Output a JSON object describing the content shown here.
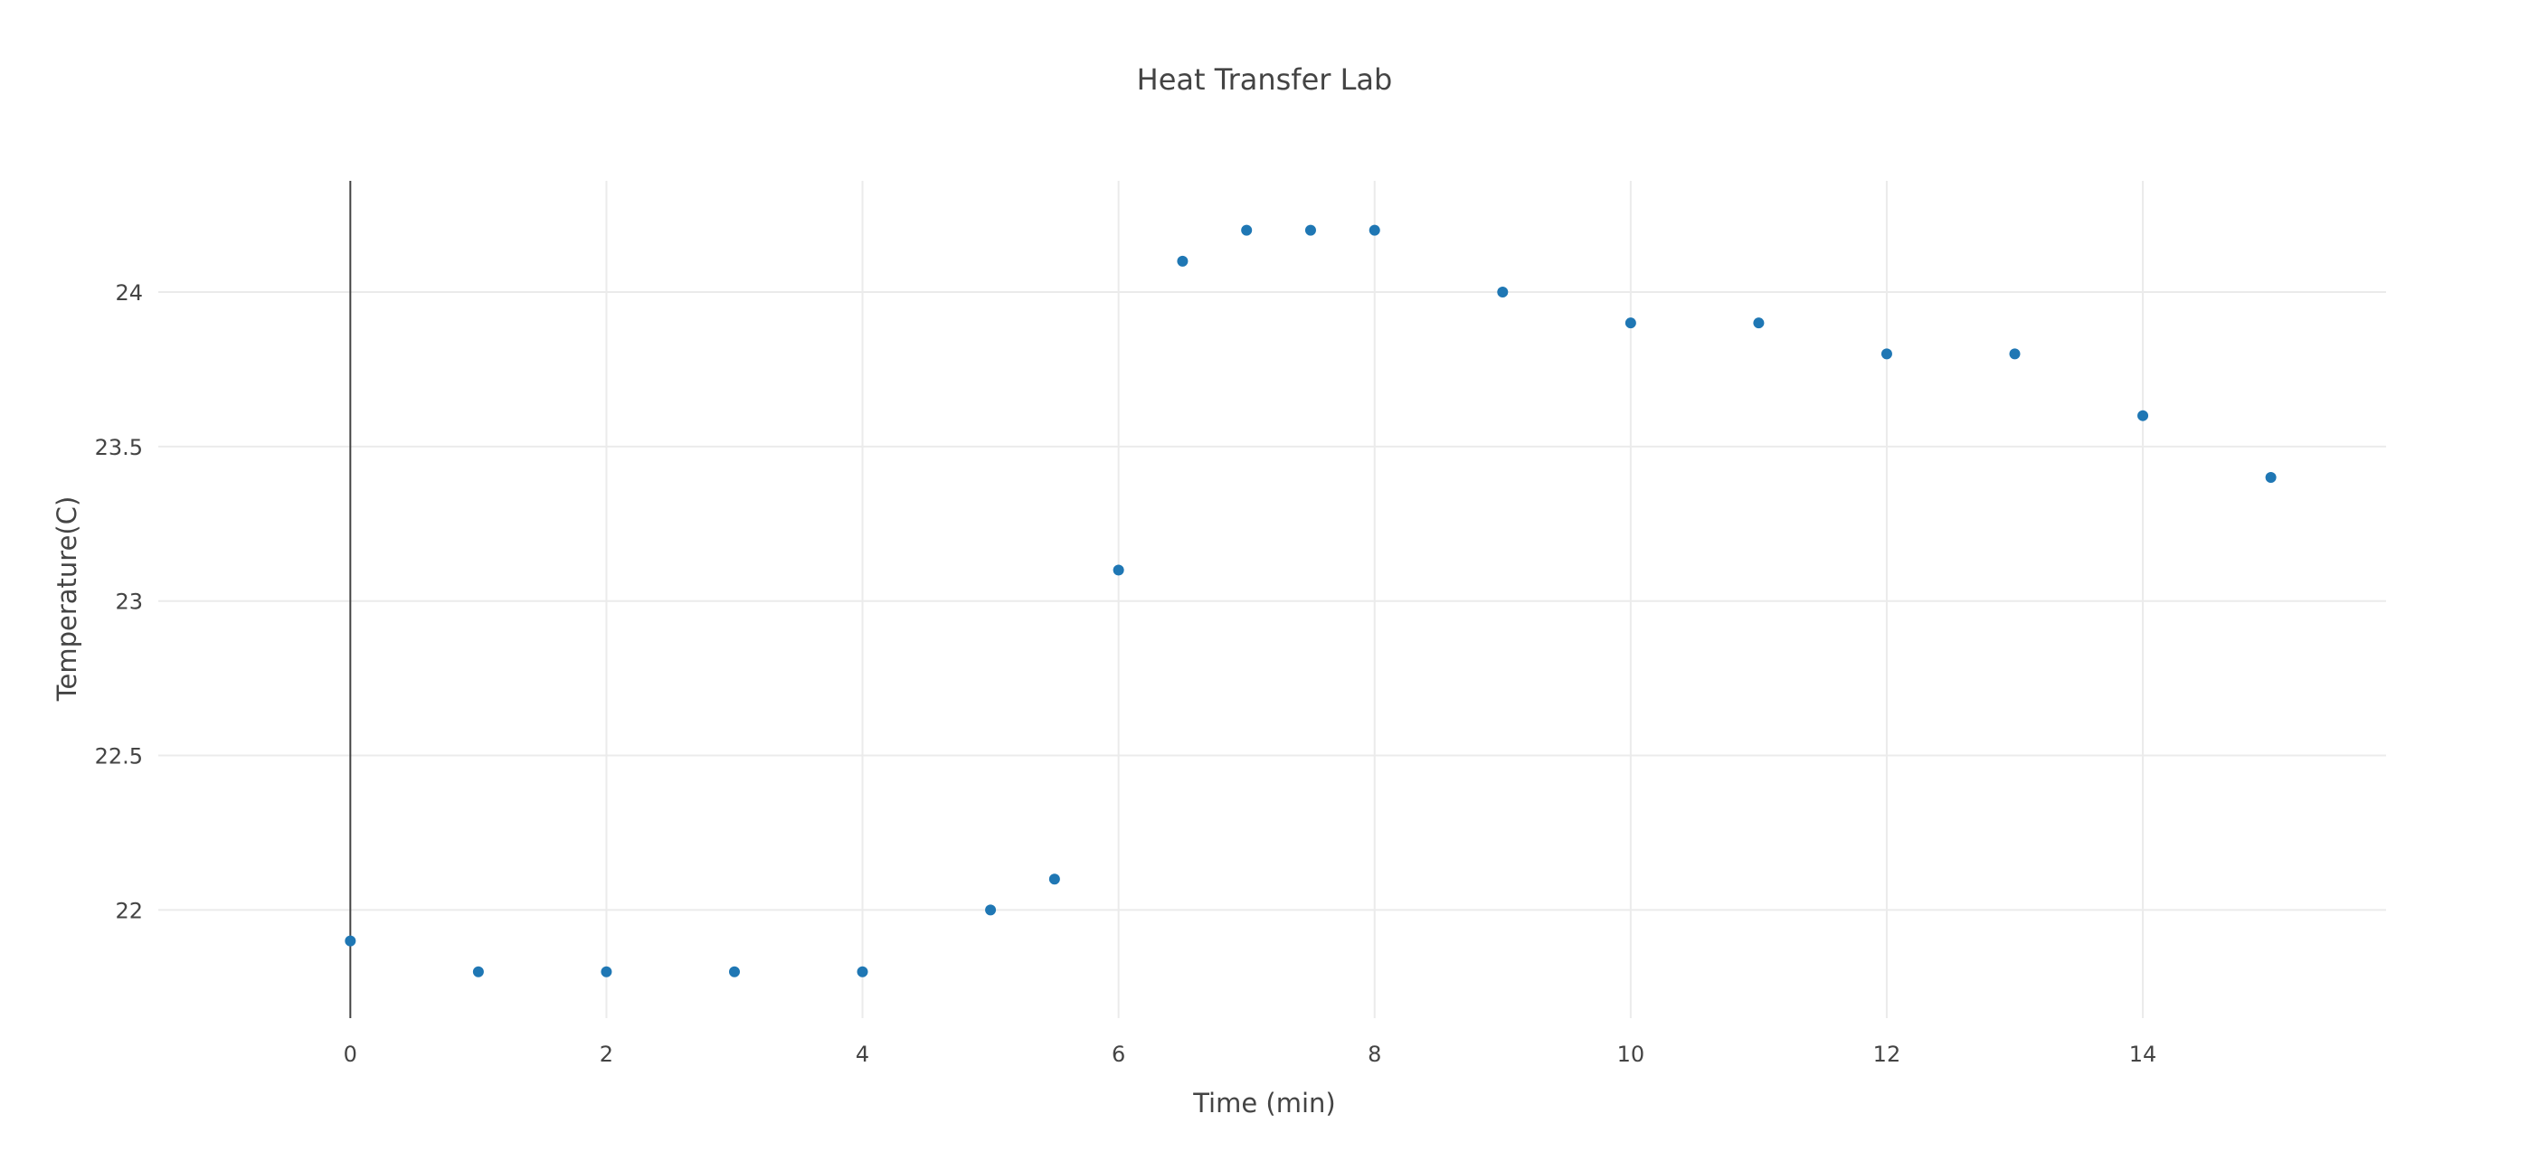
{
  "chart_data": {
    "type": "scatter",
    "title": "Heat Transfer Lab",
    "xlabel": "Time (min)",
    "ylabel": "Temperature(C)",
    "xlim": [
      -1.5,
      15.9
    ],
    "ylim": [
      21.65,
      24.36
    ],
    "xticks": [
      0,
      2,
      4,
      6,
      8,
      10,
      12,
      14
    ],
    "xtick_labels": [
      "0",
      "2",
      "4",
      "6",
      "8",
      "10",
      "12",
      "14"
    ],
    "yticks": [
      22,
      22.5,
      23,
      23.5,
      24
    ],
    "ytick_labels": [
      "22",
      "22.5",
      "23",
      "23.5",
      "24"
    ],
    "grid": true,
    "marker_color": "#1f77b4",
    "series": [
      {
        "x": [
          0,
          1,
          2,
          3,
          4,
          5,
          5.5,
          6,
          6.5,
          7,
          7.5,
          8,
          9,
          10,
          11,
          12,
          13,
          14,
          15
        ],
        "y": [
          21.9,
          21.8,
          21.8,
          21.8,
          21.8,
          22.0,
          22.1,
          23.1,
          24.1,
          24.2,
          24.2,
          24.2,
          24.0,
          23.9,
          23.9,
          23.8,
          23.8,
          23.6,
          23.4
        ]
      }
    ]
  }
}
